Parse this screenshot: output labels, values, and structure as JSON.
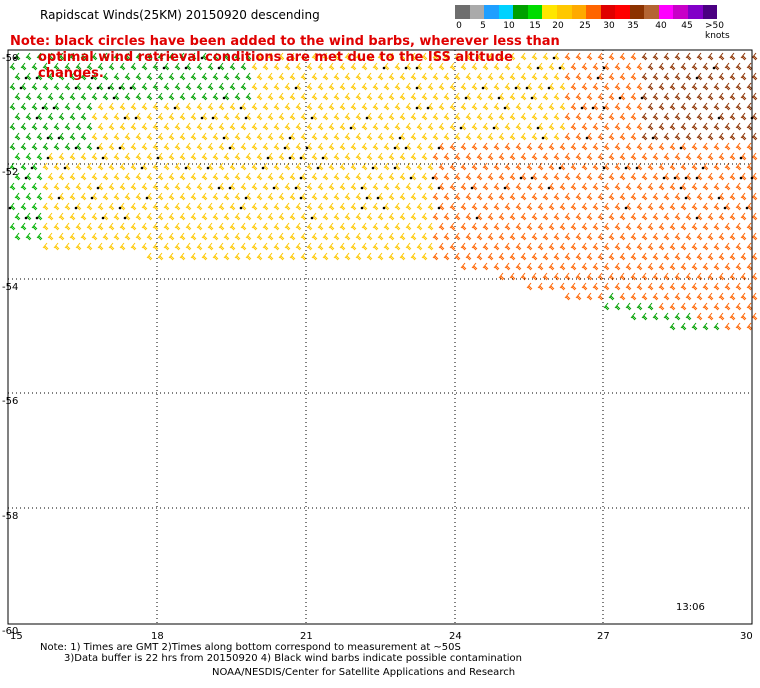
{
  "title": "Rapidscat Winds(25KM) 20150920 descending",
  "note": {
    "line1": "Note: black circles have been added to the wind barbs, wherever less than",
    "line2": "optimal wind retrieval conditions are met due to the ISS altitude changes."
  },
  "legend": {
    "labels": [
      "0",
      "5",
      "10",
      "15",
      "20",
      "25",
      "30",
      "35",
      "40",
      "45",
      ">50 knots"
    ],
    "colors": [
      "#6e6e6e",
      "#aaaaaa",
      "#1f9fff",
      "#00d2ff",
      "#00a000",
      "#00dc00",
      "#ffe600",
      "#ffc800",
      "#ffaa00",
      "#ff6400",
      "#e00000",
      "#ff0000",
      "#8c3200",
      "#b46432",
      "#ff00ff",
      "#c800c8",
      "#8200c8",
      "#4b0082"
    ]
  },
  "map": {
    "lon_ticks": [
      "15",
      "18",
      "21",
      "24",
      "27",
      "30"
    ],
    "lat_ticks": [
      "-50",
      "-52",
      "-54",
      "-56",
      "-58",
      "-60"
    ],
    "time_label": "13:06",
    "time_color": "#800080"
  },
  "footnotes": {
    "line1": "Note: 1) Times are GMT 2)Times along bottom correspond to measurement at ~50S",
    "line2": "3)Data buffer is 22 hrs from 20150920 4) Black wind barbs indicate possible contamination",
    "line3": "NOAA/NESDIS/Center for Satellite Applications and Research"
  }
}
